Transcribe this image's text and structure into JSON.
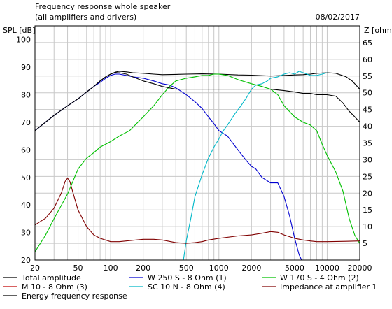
{
  "header": {
    "title": "Frequency response whole speaker",
    "subtitle": "(all amplifiers and drivers)",
    "date": "08/02/2017"
  },
  "chart_data": {
    "type": "line",
    "ylabel": "SPL [dB]",
    "y2label": "Z [ohm]",
    "xscale": "log",
    "xlim": [
      20,
      20000
    ],
    "ylim": [
      20,
      105
    ],
    "y2lim": [
      0,
      70
    ],
    "grid": true,
    "legend_position": "bottom",
    "x_ticks": [
      20,
      50,
      100,
      200,
      500,
      1000,
      2000,
      5000,
      10000,
      20000
    ],
    "x_tick_labels": [
      "20",
      "50",
      "100",
      "200",
      "500",
      "1000",
      "2000",
      "5000",
      "10000",
      "20000"
    ],
    "y_ticks": [
      20,
      30,
      40,
      50,
      60,
      70,
      80,
      90,
      100
    ],
    "y2_ticks": [
      5,
      10,
      15,
      20,
      25,
      30,
      35,
      40,
      45,
      50,
      55,
      60,
      65
    ],
    "series": [
      {
        "name": "Total amplitude",
        "color": "#000000",
        "axis": "left",
        "x": [
          20,
          30,
          40,
          50,
          60,
          70,
          80,
          90,
          100,
          110,
          120,
          140,
          160,
          200,
          250,
          300,
          400,
          500,
          700,
          1000,
          1500,
          2000,
          3000,
          4000,
          5000,
          6000,
          7000,
          8000,
          10000,
          12000,
          15000,
          17000,
          20000
        ],
        "y": [
          67,
          72.5,
          76,
          78.5,
          81,
          83,
          85,
          86.5,
          87.5,
          88.2,
          88.5,
          88.3,
          88,
          87.8,
          87.5,
          87.3,
          87.4,
          87.5,
          87.6,
          87.5,
          87.2,
          87.1,
          86.8,
          87,
          87.2,
          87.3,
          87.5,
          87.8,
          88,
          87.8,
          86.5,
          85,
          82
        ]
      },
      {
        "name": "W 250 S - 8 Ohm  (1)",
        "color": "#0000d0",
        "axis": "left",
        "x": [
          20,
          30,
          40,
          50,
          60,
          70,
          80,
          90,
          100,
          110,
          120,
          140,
          160,
          200,
          250,
          300,
          350,
          400,
          500,
          600,
          700,
          800,
          900,
          1000,
          1200,
          1500,
          1800,
          2000,
          2200,
          2500,
          3000,
          3500,
          4000,
          4500,
          5000,
          5500,
          5800
        ],
        "y": [
          67,
          72.5,
          76,
          78.5,
          81,
          83,
          84.5,
          86,
          87,
          87.5,
          87.5,
          87,
          86.5,
          86,
          85,
          84,
          83.5,
          82.5,
          80,
          77.5,
          75,
          72,
          69.5,
          67,
          65,
          60,
          56,
          54,
          53,
          50,
          48,
          48,
          43,
          36,
          28,
          22,
          20
        ]
      },
      {
        "name": "W 170 S - 4 Ohm (2)",
        "color": "#00c000",
        "axis": "left",
        "x": [
          20,
          25,
          30,
          40,
          50,
          60,
          70,
          80,
          100,
          120,
          150,
          200,
          250,
          300,
          350,
          400,
          500,
          600,
          700,
          800,
          900,
          1000,
          1200,
          1500,
          2000,
          2500,
          3000,
          3500,
          4000,
          5000,
          6000,
          6500,
          7000,
          8000,
          9000,
          10000,
          12000,
          14000,
          16000,
          18000,
          20000
        ],
        "y": [
          23,
          29,
          35,
          44,
          53,
          57,
          59,
          61,
          63,
          65,
          67,
          72,
          76,
          80,
          83,
          85,
          86,
          86.5,
          87,
          87,
          87.5,
          87.5,
          87,
          85.5,
          84,
          83,
          82,
          80,
          76,
          72,
          70,
          69.5,
          69,
          67,
          62,
          58,
          52,
          45,
          35,
          29,
          26
        ]
      },
      {
        "name": "M 10 - 8 Ohm (3)",
        "color": "#c00000",
        "axis": "left",
        "x": [
          20,
          20000
        ],
        "y": [
          20,
          20
        ]
      },
      {
        "name": "SC 10 N - 8 Ohm (4)",
        "color": "#00b8c8",
        "axis": "left",
        "x": [
          470,
          500,
          550,
          600,
          700,
          800,
          900,
          1000,
          1100,
          1200,
          1400,
          1600,
          1800,
          2000,
          2200,
          2500,
          2800,
          3000,
          3500,
          4000,
          4500,
          5000,
          5500,
          6000,
          7000,
          8000,
          9000,
          10000
        ],
        "y": [
          20,
          27,
          35,
          43,
          51,
          57,
          61,
          64,
          67,
          69,
          73,
          76,
          79,
          82,
          83.5,
          84,
          85,
          86,
          86.5,
          87.5,
          88,
          87.5,
          88.5,
          88,
          87,
          87,
          87.5,
          88
        ]
      },
      {
        "name": "Impedance at amplifier 1",
        "color": "#800000",
        "axis": "right",
        "x": [
          20,
          25,
          30,
          35,
          38,
          40,
          42,
          45,
          50,
          60,
          70,
          80,
          100,
          120,
          150,
          200,
          250,
          300,
          400,
          500,
          600,
          700,
          800,
          1000,
          1500,
          2000,
          2500,
          3000,
          3500,
          4000,
          5000,
          6000,
          7000,
          8000,
          10000,
          15000,
          20000
        ],
        "y": [
          10.5,
          12.5,
          15.5,
          20,
          23.5,
          24.5,
          23.5,
          20,
          15,
          10,
          7.5,
          6.5,
          5.5,
          5.5,
          5.8,
          6.2,
          6.2,
          6,
          5.2,
          5,
          5.2,
          5.5,
          6,
          6.5,
          7.2,
          7.5,
          8,
          8.5,
          8.3,
          7.5,
          6.5,
          6,
          5.7,
          5.5,
          5.5,
          5.6,
          5.7
        ]
      },
      {
        "name": "Energy frequency response",
        "color": "#000000",
        "axis": "left",
        "x": [
          20,
          30,
          40,
          50,
          60,
          70,
          80,
          90,
          100,
          110,
          120,
          140,
          160,
          200,
          250,
          300,
          400,
          500,
          700,
          1000,
          1500,
          2000,
          3000,
          4000,
          5000,
          6000,
          7000,
          8000,
          10000,
          12000,
          14000,
          16000,
          18000,
          20000
        ],
        "y": [
          67,
          72.5,
          76,
          78.5,
          81,
          83,
          85,
          86.5,
          87.5,
          88,
          88,
          87.5,
          86.5,
          85,
          84,
          83,
          82,
          82,
          82,
          82,
          82,
          82,
          82,
          81.5,
          81,
          80.5,
          80.5,
          80,
          80,
          79.5,
          77,
          74,
          72,
          70
        ]
      }
    ]
  }
}
